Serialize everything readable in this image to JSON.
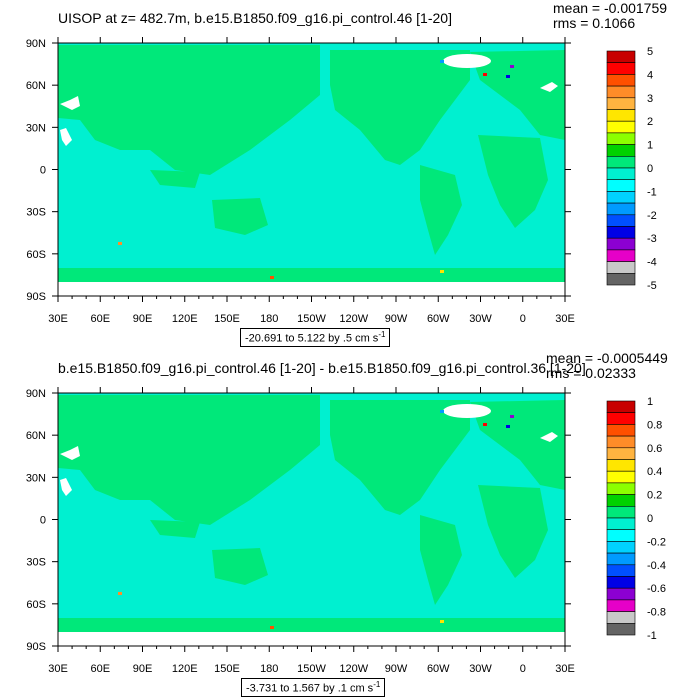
{
  "colors": {
    "land": "#00e87a",
    "ocean_pos": "#00e87a",
    "ocean_neg": "#00f0d0",
    "missing": "#ffffff",
    "frame": "#000000"
  },
  "chart_data": [
    {
      "type": "heatmap",
      "title": "UISOP at z= 482.7m, b.e15.B1850.f09_g16.pi_control.46 [1-20]",
      "stats": {
        "mean": "mean = -0.001759",
        "rms": "rms = 0.1066"
      },
      "range_label": "-20.691 to 5.122 by .5 cm s",
      "range_sup": "-1",
      "xlabels": [
        "30E",
        "60E",
        "90E",
        "120E",
        "150E",
        "180",
        "150W",
        "120W",
        "90W",
        "60W",
        "30W",
        "0",
        "30E"
      ],
      "ylabels": [
        "90N",
        "60N",
        "30N",
        "0",
        "30S",
        "60S",
        "90S"
      ],
      "colorbar": {
        "labels": [
          "5",
          "4",
          "3",
          "2",
          "1",
          "0",
          "-1",
          "-2",
          "-3",
          "-4",
          "-5"
        ],
        "colors": [
          "#c80000",
          "#ff0000",
          "#ff5000",
          "#ff8c28",
          "#ffb440",
          "#ffe600",
          "#ffff00",
          "#8cff00",
          "#00d200",
          "#00e87a",
          "#00f0d0",
          "#00ffff",
          "#00d2ff",
          "#009bff",
          "#0050ff",
          "#0000e6",
          "#8c00d2",
          "#e600c8",
          "#c8c8c8",
          "#646464"
        ]
      }
    },
    {
      "type": "heatmap",
      "title": "b.e15.B1850.f09_g16.pi_control.46 [1-20] - b.e15.B1850.f09_g16.pi_control.36 [1-20]",
      "stats": {
        "mean": "mean = -0.0005449",
        "rms": "rms = 0.02333"
      },
      "range_label": "-3.731 to 1.567 by .1 cm s",
      "range_sup": "-1",
      "xlabels": [
        "30E",
        "60E",
        "90E",
        "120E",
        "150E",
        "180",
        "150W",
        "120W",
        "90W",
        "60W",
        "30W",
        "0",
        "30E"
      ],
      "ylabels": [
        "90N",
        "60N",
        "30N",
        "0",
        "30S",
        "60S",
        "90S"
      ],
      "colorbar": {
        "labels": [
          "1",
          "0.8",
          "0.6",
          "0.4",
          "0.2",
          "0",
          "-0.2",
          "-0.4",
          "-0.6",
          "-0.8",
          "-1"
        ],
        "colors": [
          "#c80000",
          "#ff0000",
          "#ff5000",
          "#ff8c28",
          "#ffb440",
          "#ffe600",
          "#ffff00",
          "#8cff00",
          "#00d200",
          "#00e87a",
          "#00f0d0",
          "#00ffff",
          "#00d2ff",
          "#009bff",
          "#0050ff",
          "#0000e6",
          "#8c00d2",
          "#e600c8",
          "#c8c8c8",
          "#646464"
        ]
      }
    }
  ]
}
